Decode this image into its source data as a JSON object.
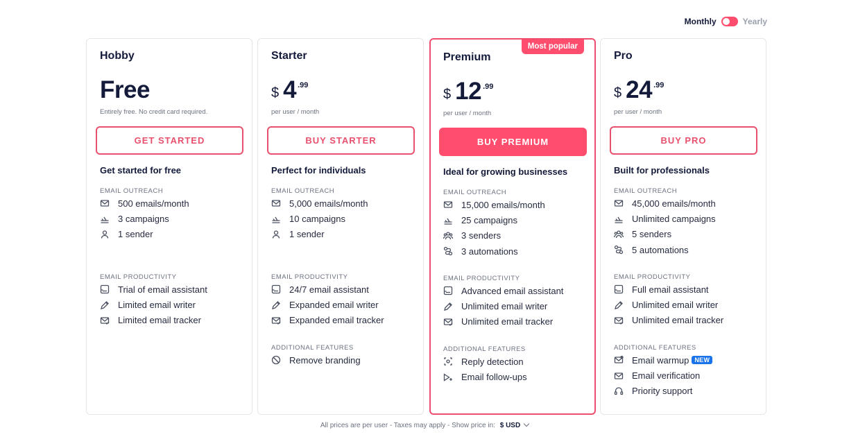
{
  "billing": {
    "monthly": "Monthly",
    "yearly": "Yearly"
  },
  "plans": [
    {
      "name": "Hobby",
      "free_label": "Free",
      "currency": "",
      "price": "",
      "cents": "",
      "note": "Entirely free. No credit card required.",
      "cta": "GET STARTED",
      "tagline": "Get started for free",
      "sections": [
        {
          "label": "EMAIL OUTREACH",
          "items": [
            {
              "icon": "envelope-icon",
              "text": "500 emails/month"
            },
            {
              "icon": "plane-icon",
              "text": "3 campaigns"
            },
            {
              "icon": "user-icon",
              "text": "1 sender"
            }
          ]
        },
        {
          "label": "EMAIL PRODUCTIVITY",
          "items": [
            {
              "icon": "assistant-icon",
              "text": "Trial of email assistant"
            },
            {
              "icon": "pencil-icon",
              "text": "Limited email writer"
            },
            {
              "icon": "tracker-icon",
              "text": "Limited email tracker"
            }
          ]
        }
      ]
    },
    {
      "name": "Starter",
      "free_label": "",
      "currency": "$",
      "price": "4",
      "cents": ".99",
      "note": "per user / month",
      "cta": "BUY STARTER",
      "tagline": "Perfect for individuals",
      "sections": [
        {
          "label": "EMAIL OUTREACH",
          "items": [
            {
              "icon": "envelope-icon",
              "text": "5,000 emails/month"
            },
            {
              "icon": "plane-icon",
              "text": "10 campaigns"
            },
            {
              "icon": "user-icon",
              "text": "1 sender"
            }
          ]
        },
        {
          "label": "EMAIL PRODUCTIVITY",
          "items": [
            {
              "icon": "assistant-icon",
              "text": "24/7 email assistant"
            },
            {
              "icon": "pencil-icon",
              "text": "Expanded email writer"
            },
            {
              "icon": "tracker-icon",
              "text": "Expanded email tracker"
            }
          ]
        },
        {
          "label": "ADDITIONAL FEATURES",
          "items": [
            {
              "icon": "no-branding-icon",
              "text": "Remove branding"
            }
          ]
        }
      ]
    },
    {
      "name": "Premium",
      "free_label": "",
      "currency": "$",
      "price": "12",
      "cents": ".99",
      "note": "per user / month",
      "cta": "BUY PREMIUM",
      "badge": "Most popular",
      "tagline": "Ideal for growing businesses",
      "sections": [
        {
          "label": "EMAIL OUTREACH",
          "items": [
            {
              "icon": "envelope-icon",
              "text": "15,000 emails/month"
            },
            {
              "icon": "plane-icon",
              "text": "25 campaigns"
            },
            {
              "icon": "users-icon",
              "text": "3 senders"
            },
            {
              "icon": "automation-icon",
              "text": "3 automations"
            }
          ]
        },
        {
          "label": "EMAIL PRODUCTIVITY",
          "items": [
            {
              "icon": "assistant-icon",
              "text": "Advanced email assistant"
            },
            {
              "icon": "pencil-icon",
              "text": "Unlimited email writer"
            },
            {
              "icon": "tracker-icon",
              "text": "Unlimited email tracker"
            }
          ]
        },
        {
          "label": "ADDITIONAL FEATURES",
          "items": [
            {
              "icon": "reply-detection-icon",
              "text": "Reply detection"
            },
            {
              "icon": "follow-up-icon",
              "text": "Email follow-ups"
            }
          ]
        }
      ]
    },
    {
      "name": "Pro",
      "free_label": "",
      "currency": "$",
      "price": "24",
      "cents": ".99",
      "note": "per user / month",
      "cta": "BUY PRO",
      "tagline": "Built for professionals",
      "sections": [
        {
          "label": "EMAIL OUTREACH",
          "items": [
            {
              "icon": "envelope-icon",
              "text": "45,000 emails/month"
            },
            {
              "icon": "plane-icon",
              "text": "Unlimited campaigns"
            },
            {
              "icon": "users-icon",
              "text": "5 senders"
            },
            {
              "icon": "automation-icon",
              "text": "5 automations"
            }
          ]
        },
        {
          "label": "EMAIL PRODUCTIVITY",
          "items": [
            {
              "icon": "assistant-icon",
              "text": "Full email assistant"
            },
            {
              "icon": "pencil-icon",
              "text": "Unlimited email writer"
            },
            {
              "icon": "tracker-icon",
              "text": "Unlimited email tracker"
            }
          ]
        },
        {
          "label": "ADDITIONAL FEATURES",
          "items": [
            {
              "icon": "warmup-icon",
              "text": "Email warmup",
              "badge": "NEW"
            },
            {
              "icon": "verification-icon",
              "text": "Email verification"
            },
            {
              "icon": "support-icon",
              "text": "Priority support"
            }
          ]
        }
      ]
    }
  ],
  "footer": {
    "text": "All prices are per user - Taxes may apply - Show price in:",
    "currency": "$ USD"
  },
  "accent_color": "#ff4d6d"
}
